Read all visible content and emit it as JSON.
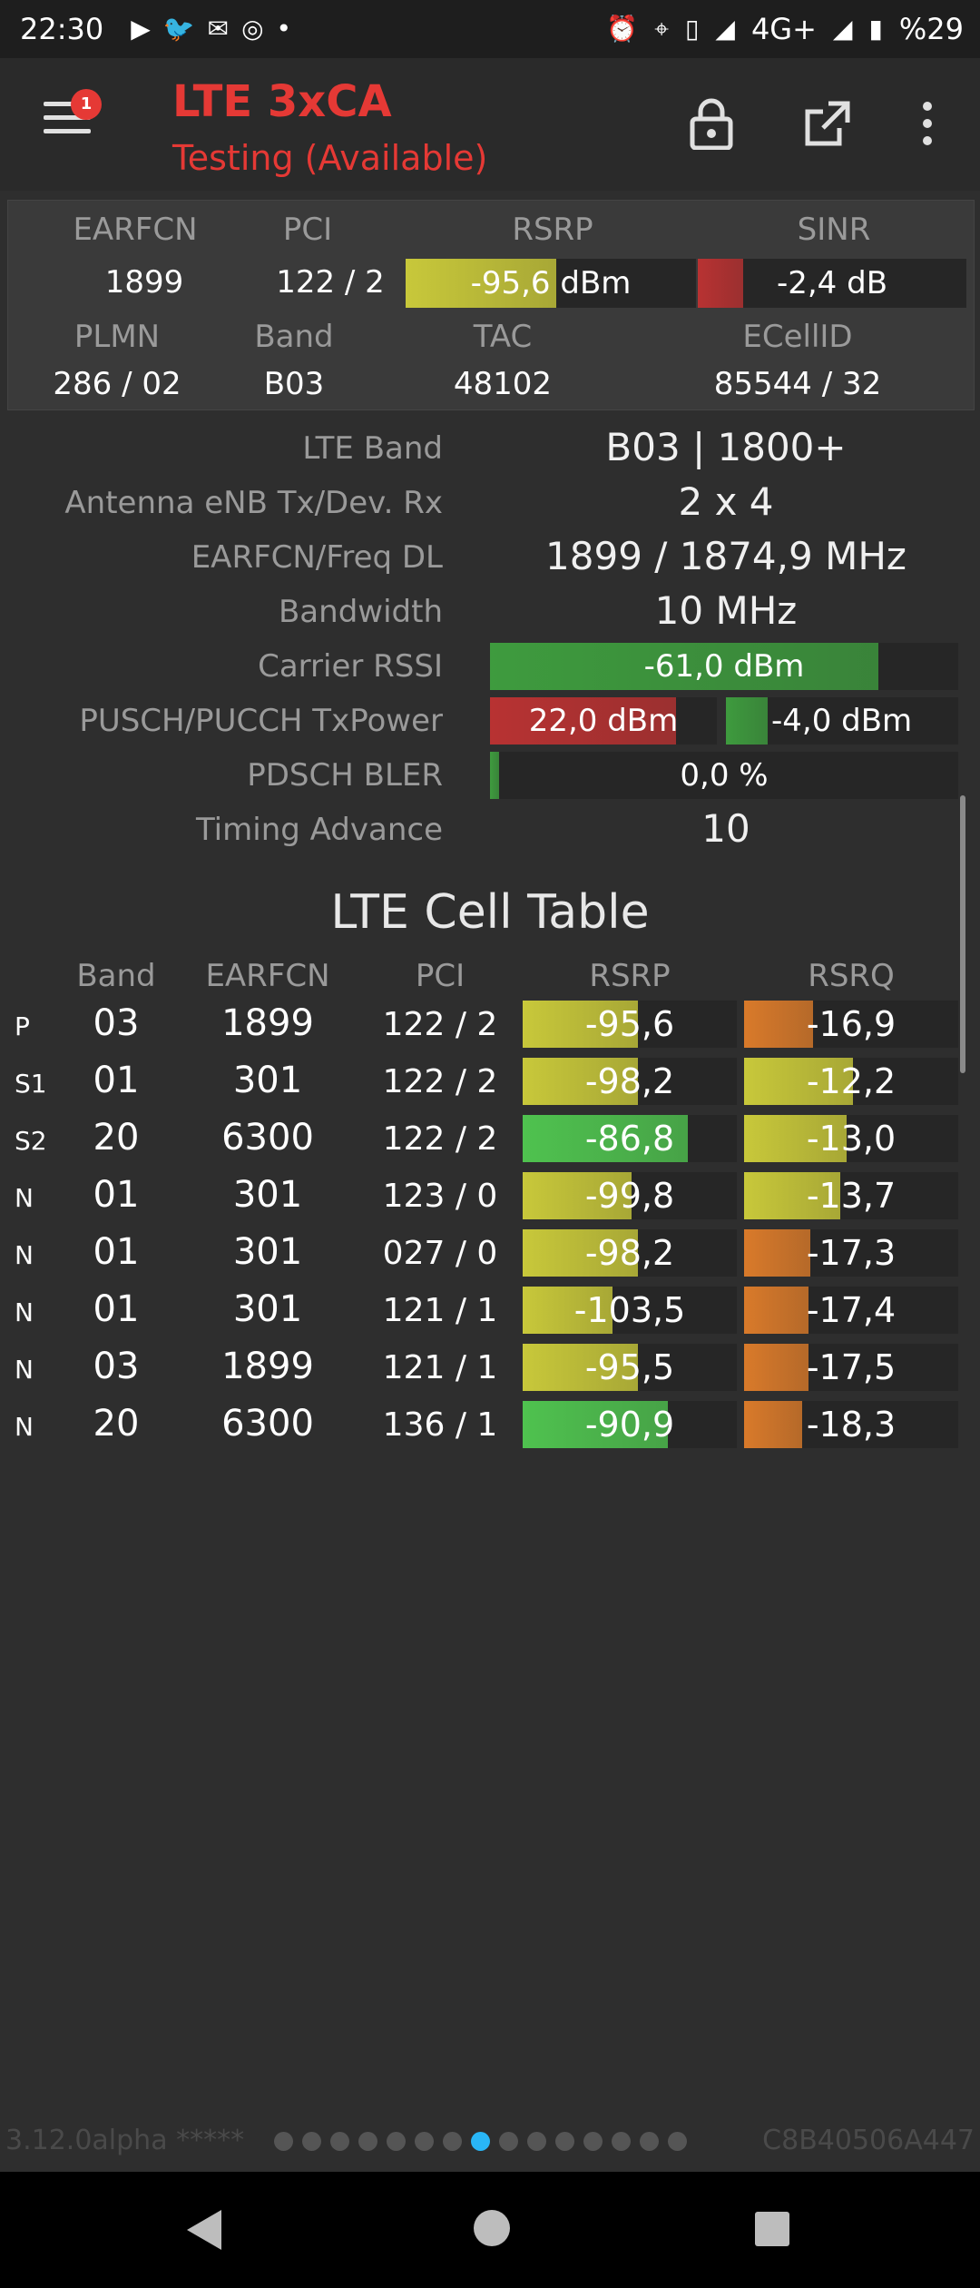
{
  "status_bar": {
    "time": "22:30",
    "notif_icons": [
      "youtube-icon",
      "twitter-icon",
      "gmail-icon",
      "instagram-icon",
      "dot-icon"
    ],
    "sys_icons": [
      "alarm-icon",
      "location-icon",
      "vibrate-icon",
      "signal-icon"
    ],
    "network": "4G+",
    "battery": "%29"
  },
  "app_bar": {
    "title": "LTE 3xCA",
    "subtitle": "Testing (Available)",
    "badge": "1",
    "accent": "#e53935"
  },
  "summary": {
    "headers": [
      "EARFCN",
      "PCI",
      "RSRP",
      "SINR"
    ],
    "earfcn": "1899",
    "pci": "122 / 2",
    "rsrp": {
      "text": "-95,6 dBm",
      "level": 0.52,
      "color": "#c8c83a"
    },
    "sinr": {
      "text": "-2,4 dB",
      "level": 0.17,
      "color": "#b83232"
    },
    "headers2": [
      "PLMN",
      "Band",
      "TAC",
      "ECellID"
    ],
    "plmn": "286 / 02",
    "band": "B03",
    "tac": "48102",
    "ecellid": "85544 / 32"
  },
  "details": {
    "lte_band": {
      "label": "LTE Band",
      "value": "B03 | 1800+"
    },
    "antenna": {
      "label": "Antenna eNB Tx/Dev. Rx",
      "value": "2 x 4"
    },
    "earfcn_freq": {
      "label": "EARFCN/Freq DL",
      "value": "1899 / 1874,9 MHz"
    },
    "bandwidth": {
      "label": "Bandwidth",
      "value": "10 MHz"
    },
    "carrier_rssi": {
      "label": "Carrier RSSI",
      "text": "-61,0 dBm",
      "level": 0.83,
      "color": "#3e9b3e"
    },
    "pusch_pucch": {
      "label": "PUSCH/PUCCH TxPower",
      "pusch": {
        "text": "22,0 dBm",
        "level": 0.82,
        "color": "#b83232"
      },
      "pucch": {
        "text": "-4,0 dBm",
        "level": 0.18,
        "color": "#3e9b3e"
      }
    },
    "pdsch_bler": {
      "label": "PDSCH BLER",
      "text": "0,0 %",
      "level": 0.02,
      "color": "#3e9b3e"
    },
    "timing_advance": {
      "label": "Timing Advance",
      "value": "10"
    }
  },
  "cell_table": {
    "title": "LTE Cell Table",
    "headers": [
      "Band",
      "EARFCN",
      "PCI",
      "RSRP",
      "RSRQ"
    ],
    "rows": [
      {
        "type": "P",
        "band": "03",
        "earfcn": "1899",
        "pci": "122 / 2",
        "rsrp": "-95,6",
        "rsrp_level": 0.54,
        "rsrp_color": "#c8c83a",
        "rsrq": "-16,9",
        "rsrq_level": 0.32,
        "rsrq_color": "#d97a2a"
      },
      {
        "type": "S1",
        "band": "01",
        "earfcn": "301",
        "pci": "122 / 2",
        "rsrp": "-98,2",
        "rsrp_level": 0.54,
        "rsrp_color": "#c8c83a",
        "rsrq": "-12,2",
        "rsrq_level": 0.51,
        "rsrq_color": "#c8c83a"
      },
      {
        "type": "S2",
        "band": "20",
        "earfcn": "6300",
        "pci": "122 / 2",
        "rsrp": "-86,8",
        "rsrp_level": 0.77,
        "rsrp_color": "#4fc24f",
        "rsrq": "-13,0",
        "rsrq_level": 0.48,
        "rsrq_color": "#c8c83a"
      },
      {
        "type": "N",
        "band": "01",
        "earfcn": "301",
        "pci": "123 / 0",
        "rsrp": "-99,8",
        "rsrp_level": 0.51,
        "rsrp_color": "#c8c83a",
        "rsrq": "-13,7",
        "rsrq_level": 0.45,
        "rsrq_color": "#c8c83a"
      },
      {
        "type": "N",
        "band": "01",
        "earfcn": "301",
        "pci": "027 / 0",
        "rsrp": "-98,2",
        "rsrp_level": 0.54,
        "rsrp_color": "#c8c83a",
        "rsrq": "-17,3",
        "rsrq_level": 0.31,
        "rsrq_color": "#d97a2a"
      },
      {
        "type": "N",
        "band": "01",
        "earfcn": "301",
        "pci": "121 / 1",
        "rsrp": "-103,5",
        "rsrp_level": 0.42,
        "rsrp_color": "#c8c83a",
        "rsrq": "-17,4",
        "rsrq_level": 0.3,
        "rsrq_color": "#d97a2a"
      },
      {
        "type": "N",
        "band": "03",
        "earfcn": "1899",
        "pci": "121 / 1",
        "rsrp": "-95,5",
        "rsrp_level": 0.54,
        "rsrp_color": "#c8c83a",
        "rsrq": "-17,5",
        "rsrq_level": 0.3,
        "rsrq_color": "#d97a2a"
      },
      {
        "type": "N",
        "band": "20",
        "earfcn": "6300",
        "pci": "136 / 1",
        "rsrp": "-90,9",
        "rsrp_level": 0.68,
        "rsrp_color": "#4fc24f",
        "rsrq": "-18,3",
        "rsrq_level": 0.27,
        "rsrq_color": "#d97a2a"
      }
    ]
  },
  "footer": {
    "version": "3.12.0alpha *****",
    "device_id": "C8B40506A447",
    "page_count": 15,
    "active_page": 7
  }
}
